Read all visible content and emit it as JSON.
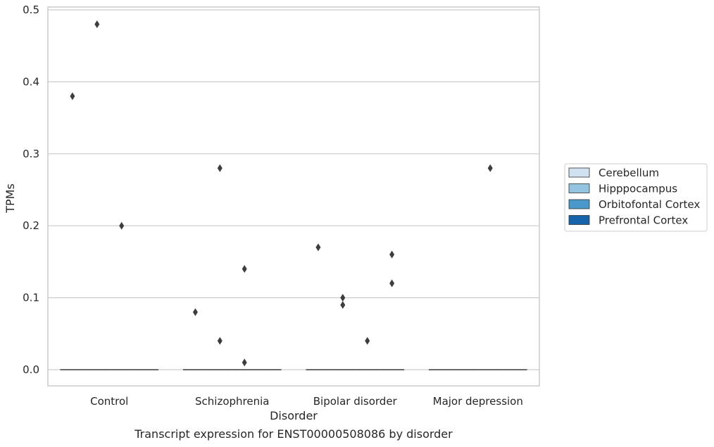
{
  "chart_data": {
    "type": "box",
    "caption": "Transcript expression for ENST00000508086 by disorder",
    "xlabel": "Disorder",
    "ylabel": "TPMs",
    "categories": [
      "Control",
      "Schizophrenia",
      "Bipolar disorder",
      "Major depression"
    ],
    "ylim": [
      -0.023,
      0.505
    ],
    "yticks": [
      0.0,
      0.1,
      0.2,
      0.3,
      0.4,
      0.5
    ],
    "ytick_labels": [
      "0.0",
      "0.1",
      "0.2",
      "0.3",
      "0.4",
      "0.5"
    ],
    "grid": "horizontal",
    "legend": {
      "placement": "right",
      "entries": [
        {
          "name": "Cerebellum",
          "color": "#d0e1f2"
        },
        {
          "name": "Hipppocampus",
          "color": "#94c4df"
        },
        {
          "name": "Orbitofontal Cortex",
          "color": "#4a98c9"
        },
        {
          "name": "Prefrontal Cortex",
          "color": "#1764ab"
        }
      ]
    },
    "series": [
      {
        "name": "Cerebellum",
        "medians": [
          0.0,
          0.0,
          0.0,
          0.0
        ],
        "outliers": [
          [
            0.38
          ],
          [
            0.08
          ],
          [
            0.17
          ],
          []
        ]
      },
      {
        "name": "Hipppocampus",
        "medians": [
          0.0,
          0.0,
          0.0,
          0.0
        ],
        "outliers": [
          [
            0.48
          ],
          [
            0.28,
            0.04
          ],
          [
            0.1,
            0.09
          ],
          []
        ]
      },
      {
        "name": "Orbitofontal Cortex",
        "medians": [
          0.0,
          0.0,
          0.0,
          0.0
        ],
        "outliers": [
          [
            0.2
          ],
          [
            0.14,
            0.01
          ],
          [
            0.04
          ],
          [
            0.28
          ]
        ]
      },
      {
        "name": "Prefrontal Cortex",
        "medians": [
          0.0,
          0.0,
          0.0,
          0.0
        ],
        "outliers": [
          [],
          [],
          [
            0.16,
            0.12
          ],
          []
        ]
      }
    ],
    "colors": {
      "grid": "#cccccc",
      "frame": "#cccccc",
      "median": "#3d3d3d",
      "outlier": "#3d3d3d",
      "text": "#262626"
    }
  }
}
